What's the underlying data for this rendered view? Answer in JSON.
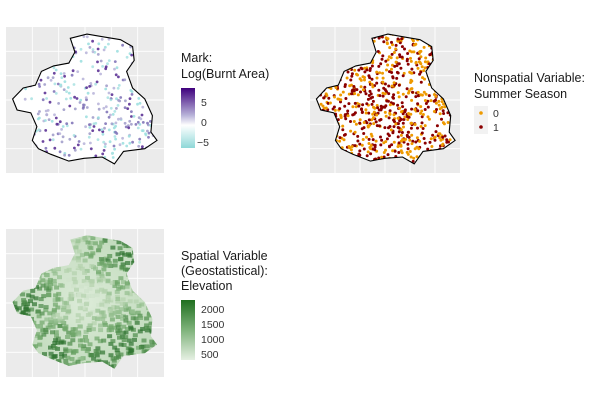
{
  "chart_data": [
    {
      "type": "map",
      "legend": {
        "title_lines": [
          "Mark:",
          "Log(Burnt Area)"
        ],
        "breaks": [
          "5",
          "0",
          "−5"
        ],
        "gradient": [
          "#3f007d",
          "#9e9ac8",
          "#ffffff",
          "#99dede"
        ]
      }
    },
    {
      "type": "map",
      "legend": {
        "title_lines": [
          "Nonspatial Variable:",
          "Summer Season"
        ],
        "entries": [
          {
            "label": "0",
            "color": "#ee9a00"
          },
          {
            "label": "1",
            "color": "#8b0000"
          }
        ]
      }
    },
    {
      "type": "map",
      "legend": {
        "title_lines": [
          "Spatial Variable",
          "(Geostatistical):",
          "Elevation"
        ],
        "breaks": [
          "2000",
          "1500",
          "1000",
          "500"
        ],
        "gradient": [
          "#1f6f1f",
          "#6aa86a",
          "#b7d7b3",
          "#e6f0e3"
        ]
      }
    }
  ]
}
